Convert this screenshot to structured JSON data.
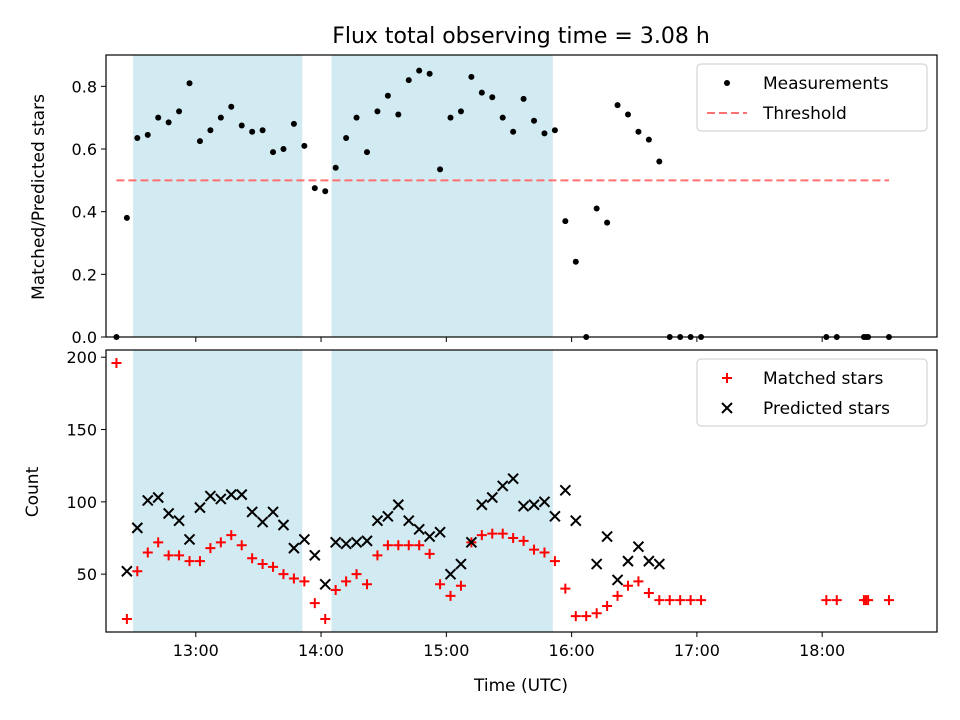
{
  "chart_data": [
    {
      "type": "scatter",
      "title": "Flux total observing time = 3.08 h",
      "xlabel": "",
      "ylabel": "Matched/Predicted stars",
      "xlim": [
        "12:17",
        "18:55"
      ],
      "ylim": [
        0,
        0.9
      ],
      "yticks": [
        0.0,
        0.2,
        0.4,
        0.6,
        0.8
      ],
      "ytick_labels": [
        "0.0",
        "0.2",
        "0.4",
        "0.6",
        "0.8"
      ],
      "shaded_spans": [
        [
          "12:30",
          "13:51"
        ],
        [
          "14:05",
          "15:51"
        ]
      ],
      "legend": "top-right",
      "series": [
        {
          "name": "Measurements",
          "color": "#000000",
          "marker": "dot",
          "x": [
            "12:22",
            "12:27",
            "12:32",
            "12:37",
            "12:42",
            "12:47",
            "12:52",
            "12:57",
            "13:02",
            "13:07",
            "13:12",
            "13:17",
            "13:22",
            "13:27",
            "13:32",
            "13:37",
            "13:42",
            "13:47",
            "13:52",
            "13:57",
            "14:02",
            "14:07",
            "14:12",
            "14:17",
            "14:22",
            "14:27",
            "14:32",
            "14:37",
            "14:42",
            "14:47",
            "14:52",
            "14:57",
            "15:02",
            "15:07",
            "15:12",
            "15:17",
            "15:22",
            "15:27",
            "15:32",
            "15:37",
            "15:42",
            "15:47",
            "15:52",
            "15:57",
            "16:02",
            "16:07",
            "16:12",
            "16:17",
            "16:22",
            "16:27",
            "16:32",
            "16:37",
            "16:42",
            "16:47",
            "16:52",
            "16:57",
            "17:02",
            "18:02",
            "18:07",
            "18:20",
            "18:21",
            "18:22",
            "18:32"
          ],
          "y": [
            0.0,
            0.38,
            0.635,
            0.645,
            0.7,
            0.685,
            0.72,
            0.81,
            0.625,
            0.66,
            0.7,
            0.735,
            0.675,
            0.655,
            0.66,
            0.59,
            0.6,
            0.68,
            0.61,
            0.475,
            0.465,
            0.54,
            0.635,
            0.7,
            0.59,
            0.72,
            0.77,
            0.71,
            0.82,
            0.85,
            0.84,
            0.535,
            0.7,
            0.72,
            0.83,
            0.78,
            0.765,
            0.7,
            0.655,
            0.76,
            0.69,
            0.65,
            0.66,
            0.37,
            0.24,
            0.0,
            0.41,
            0.365,
            0.74,
            0.71,
            0.655,
            0.63,
            0.56,
            0.0,
            0.0,
            0.0,
            0.0,
            0.0,
            0.0,
            0.0,
            0.0,
            0.0,
            0.0
          ]
        },
        {
          "name": "Threshold",
          "color": "#ff7070",
          "style": "dashed",
          "x": [
            "12:22",
            "18:32"
          ],
          "y": [
            0.5,
            0.5
          ]
        }
      ]
    },
    {
      "type": "scatter",
      "title": "",
      "xlabel": "Time (UTC)",
      "ylabel": "Count",
      "xlim": [
        "12:17",
        "18:55"
      ],
      "ylim": [
        10,
        205
      ],
      "yticks": [
        50,
        100,
        150,
        200
      ],
      "ytick_labels": [
        "50",
        "100",
        "150",
        "200"
      ],
      "xticks": [
        "13:00",
        "14:00",
        "15:00",
        "16:00",
        "17:00",
        "18:00"
      ],
      "shaded_spans": [
        [
          "12:30",
          "13:51"
        ],
        [
          "14:05",
          "15:51"
        ]
      ],
      "legend": "top-right",
      "series": [
        {
          "name": "Matched stars",
          "color": "#ff0000",
          "marker": "plus",
          "x": [
            "12:22",
            "12:27",
            "12:32",
            "12:37",
            "12:42",
            "12:47",
            "12:52",
            "12:57",
            "13:02",
            "13:07",
            "13:12",
            "13:17",
            "13:22",
            "13:27",
            "13:32",
            "13:37",
            "13:42",
            "13:47",
            "13:52",
            "13:57",
            "14:02",
            "14:07",
            "14:12",
            "14:17",
            "14:22",
            "14:27",
            "14:32",
            "14:37",
            "14:42",
            "14:47",
            "14:52",
            "14:57",
            "15:02",
            "15:07",
            "15:12",
            "15:17",
            "15:22",
            "15:27",
            "15:32",
            "15:37",
            "15:42",
            "15:47",
            "15:52",
            "15:57",
            "16:02",
            "16:07",
            "16:12",
            "16:17",
            "16:22",
            "16:27",
            "16:32",
            "16:37",
            "16:42",
            "16:47",
            "16:52",
            "16:57",
            "17:02",
            "18:02",
            "18:07",
            "18:20",
            "18:21",
            "18:22",
            "18:32"
          ],
          "y": [
            196,
            19,
            52,
            65,
            72,
            63,
            63,
            59,
            59,
            68,
            72,
            77,
            70,
            61,
            57,
            55,
            50,
            47,
            45,
            30,
            19,
            39,
            45,
            50,
            43,
            63,
            70,
            70,
            70,
            70,
            64,
            43,
            35,
            42,
            72,
            77,
            78,
            78,
            75,
            73,
            67,
            65,
            59,
            40,
            21,
            21,
            23,
            28,
            35,
            42,
            45,
            37,
            32,
            32,
            32,
            32,
            32,
            32,
            32,
            32,
            32,
            32,
            32
          ]
        },
        {
          "name": "Predicted stars",
          "color": "#000000",
          "marker": "x",
          "x": [
            "12:22",
            "12:27",
            "12:32",
            "12:37",
            "12:42",
            "12:47",
            "12:52",
            "12:57",
            "13:02",
            "13:07",
            "13:12",
            "13:17",
            "13:22",
            "13:27",
            "13:32",
            "13:37",
            "13:42",
            "13:47",
            "13:52",
            "13:57",
            "14:02",
            "14:07",
            "14:12",
            "14:17",
            "14:22",
            "14:27",
            "14:32",
            "14:37",
            "14:42",
            "14:47",
            "14:52",
            "14:57",
            "15:02",
            "15:07",
            "15:12",
            "15:17",
            "15:22",
            "15:27",
            "15:32",
            "15:37",
            "15:42",
            "15:47",
            "15:52",
            "15:57",
            "16:02",
            "16:12",
            "16:17",
            "16:22",
            "16:27",
            "16:32",
            "16:37",
            "16:42"
          ],
          "y": [
            null,
            52,
            82,
            101,
            103,
            92,
            87,
            74,
            96,
            104,
            102,
            105,
            105,
            93,
            86,
            93,
            84,
            68,
            74,
            63,
            43,
            72,
            71,
            72,
            73,
            87,
            90,
            98,
            87,
            81,
            76,
            79,
            50,
            57,
            72,
            98,
            103,
            111,
            116,
            97,
            98,
            100,
            90,
            108,
            87,
            57,
            76,
            46,
            59,
            69,
            59,
            57
          ]
        }
      ]
    }
  ],
  "colors": {
    "span": "#add8e6"
  }
}
